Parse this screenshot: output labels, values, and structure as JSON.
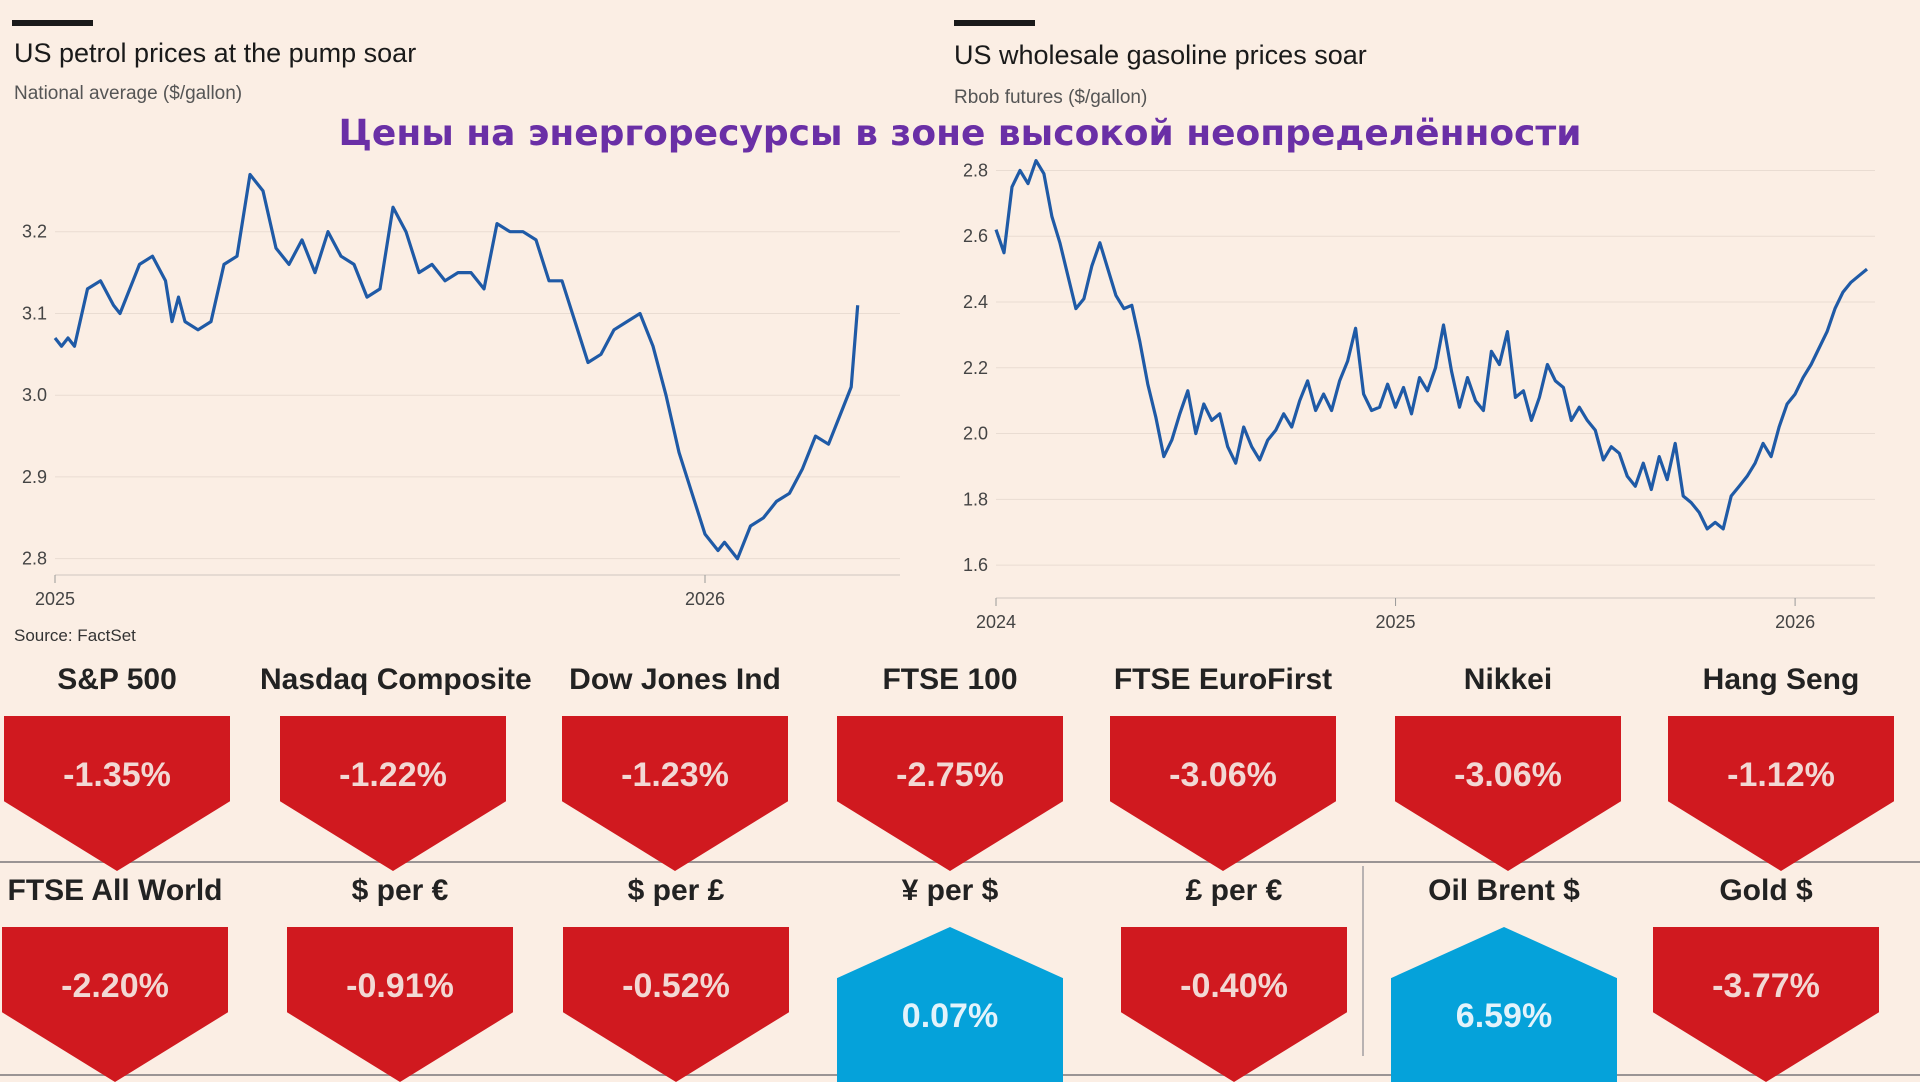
{
  "page_title": "Цены на энергоресурсы в зоне высокой неопределённости",
  "colors": {
    "line": "#1f5aa6",
    "down": "#d0191f",
    "up": "#05a2da",
    "title": "#6a2fa6",
    "background": "#fbeee4"
  },
  "chart_data": [
    {
      "type": "line",
      "title": "US petrol prices at the pump soar",
      "subtitle": "National average ($/gallon)",
      "source": "Source: FactSet",
      "xlabel": "",
      "ylabel": "$/gallon",
      "x_range": [
        2025.0,
        2026.3
      ],
      "ylim": [
        2.78,
        3.3
      ],
      "yticks": [
        {
          "value": 2.8,
          "label": "2.8"
        },
        {
          "value": 2.9,
          "label": "2.9"
        },
        {
          "value": 3.0,
          "label": "3.0"
        },
        {
          "value": 3.1,
          "label": "3.1"
        },
        {
          "value": 3.2,
          "label": "3.2"
        }
      ],
      "xticks": [
        {
          "value": 2025.0,
          "label": "2025"
        },
        {
          "value": 2026.0,
          "label": "2026"
        }
      ],
      "series": [
        {
          "name": "National average",
          "x": [
            2025.0,
            2025.01,
            2025.02,
            2025.03,
            2025.05,
            2025.07,
            2025.09,
            2025.1,
            2025.12,
            2025.13,
            2025.15,
            2025.17,
            2025.18,
            2025.19,
            2025.2,
            2025.22,
            2025.24,
            2025.26,
            2025.28,
            2025.3,
            2025.32,
            2025.34,
            2025.36,
            2025.38,
            2025.4,
            2025.42,
            2025.44,
            2025.46,
            2025.48,
            2025.5,
            2025.52,
            2025.54,
            2025.56,
            2025.58,
            2025.6,
            2025.62,
            2025.64,
            2025.66,
            2025.68,
            2025.7,
            2025.72,
            2025.74,
            2025.76,
            2025.78,
            2025.8,
            2025.82,
            2025.84,
            2025.86,
            2025.88,
            2025.9,
            2025.92,
            2025.94,
            2025.96,
            2025.98,
            2026.0,
            2026.02,
            2026.03,
            2026.05,
            2026.07,
            2026.09,
            2026.11,
            2026.13,
            2026.15,
            2026.17,
            2026.19,
            2026.21,
            2026.225,
            2026.235
          ],
          "values": [
            3.07,
            3.06,
            3.07,
            3.06,
            3.13,
            3.14,
            3.11,
            3.1,
            3.14,
            3.16,
            3.17,
            3.14,
            3.09,
            3.12,
            3.09,
            3.08,
            3.09,
            3.16,
            3.17,
            3.27,
            3.25,
            3.18,
            3.16,
            3.19,
            3.15,
            3.2,
            3.17,
            3.16,
            3.12,
            3.13,
            3.23,
            3.2,
            3.15,
            3.16,
            3.14,
            3.15,
            3.15,
            3.13,
            3.21,
            3.2,
            3.2,
            3.19,
            3.14,
            3.14,
            3.09,
            3.04,
            3.05,
            3.08,
            3.09,
            3.1,
            3.06,
            3.0,
            2.93,
            2.88,
            2.83,
            2.81,
            2.82,
            2.8,
            2.84,
            2.85,
            2.87,
            2.88,
            2.91,
            2.95,
            2.94,
            2.98,
            3.01,
            3.11
          ]
        }
      ]
    },
    {
      "type": "line",
      "title": "US wholesale gasoline prices soar",
      "subtitle": "Rbob futures ($/gallon)",
      "xlabel": "",
      "ylabel": "$/gallon",
      "x_range": [
        2024.0,
        2026.2
      ],
      "ylim": [
        1.5,
        2.85
      ],
      "yticks": [
        {
          "value": 1.6,
          "label": "1.6"
        },
        {
          "value": 1.8,
          "label": "1.8"
        },
        {
          "value": 2.0,
          "label": "2.0"
        },
        {
          "value": 2.2,
          "label": "2.2"
        },
        {
          "value": 2.4,
          "label": "2.4"
        },
        {
          "value": 2.6,
          "label": "2.6"
        },
        {
          "value": 2.8,
          "label": "2.8"
        }
      ],
      "xticks": [
        {
          "value": 2024.0,
          "label": "2024"
        },
        {
          "value": 2025.0,
          "label": "2025"
        },
        {
          "value": 2026.0,
          "label": "2026"
        }
      ],
      "series": [
        {
          "name": "Rbob futures",
          "x": [
            2024.0,
            2024.02,
            2024.04,
            2024.06,
            2024.08,
            2024.1,
            2024.12,
            2024.14,
            2024.16,
            2024.18,
            2024.2,
            2024.22,
            2024.24,
            2024.26,
            2024.28,
            2024.3,
            2024.32,
            2024.34,
            2024.36,
            2024.38,
            2024.4,
            2024.42,
            2024.44,
            2024.46,
            2024.48,
            2024.5,
            2024.52,
            2024.54,
            2024.56,
            2024.58,
            2024.6,
            2024.62,
            2024.64,
            2024.66,
            2024.68,
            2024.7,
            2024.72,
            2024.74,
            2024.76,
            2024.78,
            2024.8,
            2024.82,
            2024.84,
            2024.86,
            2024.88,
            2024.9,
            2024.92,
            2024.94,
            2024.96,
            2024.98,
            2025.0,
            2025.02,
            2025.04,
            2025.06,
            2025.08,
            2025.1,
            2025.12,
            2025.14,
            2025.16,
            2025.18,
            2025.2,
            2025.22,
            2025.24,
            2025.26,
            2025.28,
            2025.3,
            2025.32,
            2025.34,
            2025.36,
            2025.38,
            2025.4,
            2025.42,
            2025.44,
            2025.46,
            2025.48,
            2025.5,
            2025.52,
            2025.54,
            2025.56,
            2025.58,
            2025.6,
            2025.62,
            2025.64,
            2025.66,
            2025.68,
            2025.7,
            2025.72,
            2025.74,
            2025.76,
            2025.78,
            2025.8,
            2025.82,
            2025.84,
            2025.86,
            2025.88,
            2025.9,
            2025.92,
            2025.94,
            2025.96,
            2025.98,
            2026.0,
            2026.02,
            2026.04,
            2026.06,
            2026.08,
            2026.1,
            2026.12,
            2026.14,
            2026.16,
            2026.18
          ],
          "values": [
            2.62,
            2.55,
            2.75,
            2.8,
            2.76,
            2.83,
            2.79,
            2.66,
            2.58,
            2.48,
            2.38,
            2.41,
            2.51,
            2.58,
            2.5,
            2.42,
            2.38,
            2.39,
            2.28,
            2.15,
            2.05,
            1.93,
            1.98,
            2.06,
            2.13,
            2.0,
            2.09,
            2.04,
            2.06,
            1.96,
            1.91,
            2.02,
            1.96,
            1.92,
            1.98,
            2.01,
            2.06,
            2.02,
            2.1,
            2.16,
            2.07,
            2.12,
            2.07,
            2.16,
            2.22,
            2.32,
            2.12,
            2.07,
            2.08,
            2.15,
            2.08,
            2.14,
            2.06,
            2.17,
            2.13,
            2.2,
            2.33,
            2.19,
            2.08,
            2.17,
            2.1,
            2.07,
            2.25,
            2.21,
            2.31,
            2.11,
            2.13,
            2.04,
            2.11,
            2.21,
            2.16,
            2.14,
            2.04,
            2.08,
            2.04,
            2.01,
            1.92,
            1.96,
            1.94,
            1.87,
            1.84,
            1.91,
            1.83,
            1.93,
            1.86,
            1.97,
            1.81,
            1.79,
            1.76,
            1.71,
            1.73,
            1.71,
            1.81,
            1.84,
            1.87,
            1.91,
            1.97,
            1.93,
            2.02,
            2.09,
            2.12,
            2.17,
            2.21,
            2.26,
            2.31,
            2.38,
            2.43,
            2.46,
            2.48,
            2.5
          ]
        }
      ]
    }
  ],
  "tiles_row1": [
    {
      "name": "S&P 500",
      "value": "-1.35%",
      "dir": "down"
    },
    {
      "name": "Nasdaq Composite",
      "value": "-1.22%",
      "dir": "down"
    },
    {
      "name": "Dow Jones Ind",
      "value": "-1.23%",
      "dir": "down"
    },
    {
      "name": "FTSE 100",
      "value": "-2.75%",
      "dir": "down"
    },
    {
      "name": "FTSE EuroFirst",
      "value": "-3.06%",
      "dir": "down"
    },
    {
      "name": "Nikkei",
      "value": "-3.06%",
      "dir": "down"
    },
    {
      "name": "Hang Seng",
      "value": "-1.12%",
      "dir": "down"
    }
  ],
  "tiles_row2": [
    {
      "name": "FTSE All World",
      "value": "-2.20%",
      "dir": "down"
    },
    {
      "name": "$ per €",
      "value": "-0.91%",
      "dir": "down"
    },
    {
      "name": "$ per £",
      "value": "-0.52%",
      "dir": "down"
    },
    {
      "name": "¥ per $",
      "value": "0.07%",
      "dir": "up"
    },
    {
      "name": "£ per €",
      "value": "-0.40%",
      "dir": "down"
    },
    {
      "name": "Oil Brent $",
      "value": "6.59%",
      "dir": "up"
    },
    {
      "name": "Gold $",
      "value": "-3.77%",
      "dir": "down"
    }
  ]
}
